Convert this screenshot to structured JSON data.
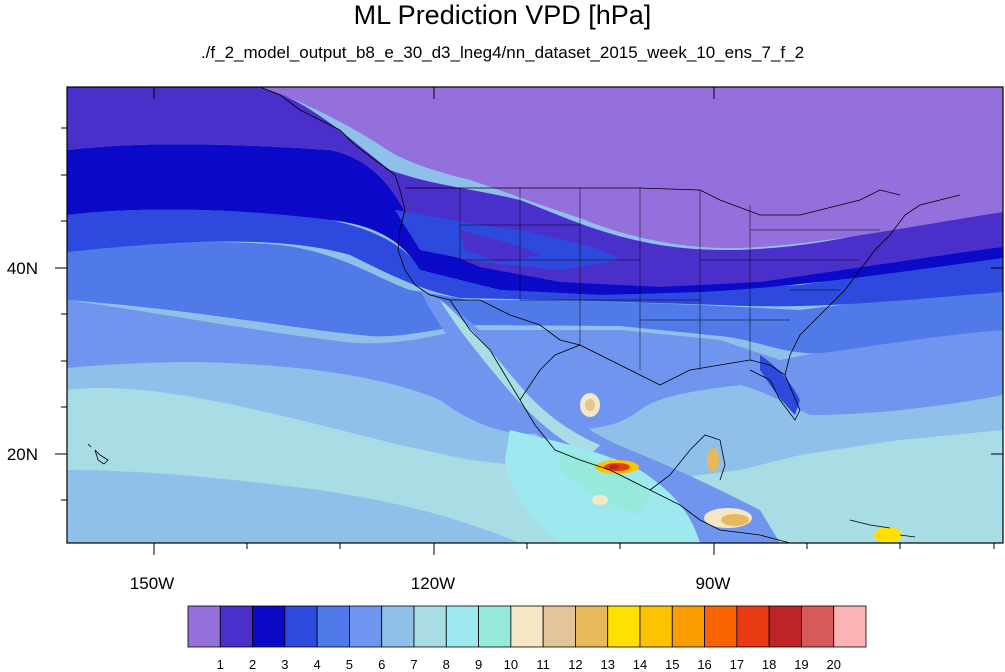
{
  "header": {
    "title": "ML Prediction VPD [hPa]",
    "subtitle": "./f_2_model_output_b8_e_30_d3_lneg4/nn_dataset_2015_week_10_ens_7_f_2"
  },
  "map": {
    "lon_range": [
      -160,
      -50
    ],
    "lat_range": [
      10,
      59
    ],
    "lon_ticks": [
      {
        "value": -150,
        "label": "150W"
      },
      {
        "value": -120,
        "label": "120W"
      },
      {
        "value": -90,
        "label": "90W"
      }
    ],
    "lat_ticks": [
      {
        "value": 40,
        "label": "40N"
      },
      {
        "value": 20,
        "label": "20N"
      }
    ]
  },
  "colorbar": {
    "colors": [
      "#9370db",
      "#4b2fcb",
      "#0a0ac8",
      "#2e4ade",
      "#4f7ae8",
      "#6f95ee",
      "#8fc0ea",
      "#a8dde6",
      "#9ee9ef",
      "#96e9db",
      "#f5e6c4",
      "#e2c598",
      "#e8b95a",
      "#ffe000",
      "#fdc200",
      "#f89c00",
      "#f76400",
      "#e83a13",
      "#bd2327",
      "#d65a5a",
      "#fbb4b4"
    ],
    "labels": [
      "1",
      "2",
      "3",
      "4",
      "5",
      "6",
      "7",
      "8",
      "9",
      "10",
      "11",
      "12",
      "13",
      "14",
      "15",
      "16",
      "17",
      "18",
      "19",
      "20"
    ]
  }
}
